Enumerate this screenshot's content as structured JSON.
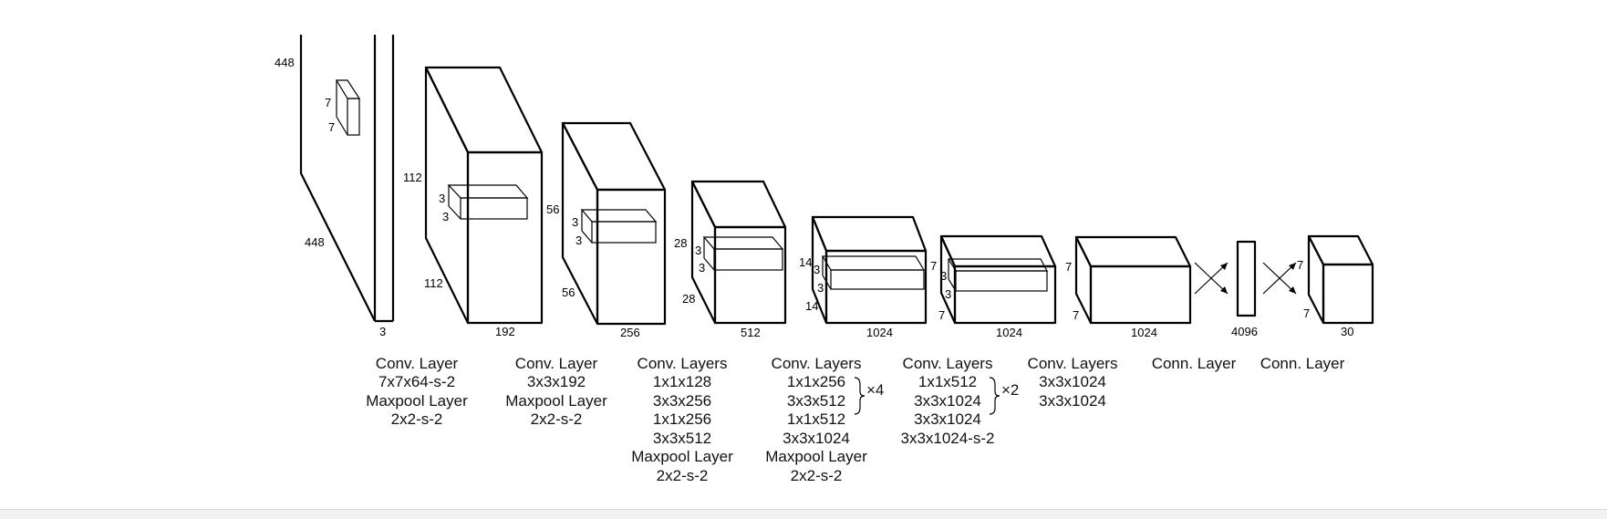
{
  "diagram": {
    "layers": [
      {
        "id": "l1",
        "dims": {
          "height": "448",
          "width": "448",
          "depth": "3",
          "kernel_h": "7",
          "kernel_w": "7"
        }
      },
      {
        "id": "l2",
        "dims": {
          "height": "112",
          "width": "112",
          "depth": "192",
          "kernel_h": "3",
          "kernel_w": "3"
        }
      },
      {
        "id": "l3",
        "dims": {
          "height": "56",
          "width": "56",
          "depth": "256",
          "kernel_h": "3",
          "kernel_w": "3"
        }
      },
      {
        "id": "l4",
        "dims": {
          "height": "28",
          "width": "28",
          "depth": "512",
          "kernel_h": "3",
          "kernel_w": "3"
        }
      },
      {
        "id": "l5",
        "dims": {
          "height": "14",
          "width": "14",
          "depth": "1024",
          "kernel_h": "3",
          "kernel_w": "3"
        }
      },
      {
        "id": "l6",
        "dims": {
          "height": "7",
          "width": "7",
          "depth": "1024",
          "kernel_h": "3",
          "kernel_w": "3"
        }
      },
      {
        "id": "l7",
        "dims": {
          "height": "7",
          "width": "7",
          "depth": "1024"
        }
      },
      {
        "id": "l8",
        "dims": {
          "depth": "4096"
        }
      },
      {
        "id": "l9",
        "dims": {
          "height": "7",
          "width": "7",
          "depth": "30"
        }
      }
    ],
    "captions": [
      [
        "Conv. Layer",
        "7x7x64-s-2",
        "Maxpool Layer",
        "2x2-s-2"
      ],
      [
        "Conv. Layer",
        "3x3x192",
        "Maxpool Layer",
        "2x2-s-2"
      ],
      [
        "Conv. Layers",
        "1x1x128",
        "3x3x256",
        "1x1x256",
        "3x3x512",
        "Maxpool Layer",
        "2x2-s-2"
      ],
      [
        "Conv. Layers",
        "1x1x256",
        "3x3x512",
        "1x1x512",
        "3x3x1024",
        "Maxpool Layer",
        "2x2-s-2"
      ],
      [
        "Conv. Layers",
        "1x1x512",
        "3x3x1024",
        "3x3x1024",
        "3x3x1024-s-2"
      ],
      [
        "Conv. Layers",
        "3x3x1024",
        "3x3x1024"
      ],
      [
        "Conn. Layer"
      ],
      [
        "Conn. Layer"
      ]
    ],
    "repeats": [
      "×4",
      "×2"
    ]
  }
}
